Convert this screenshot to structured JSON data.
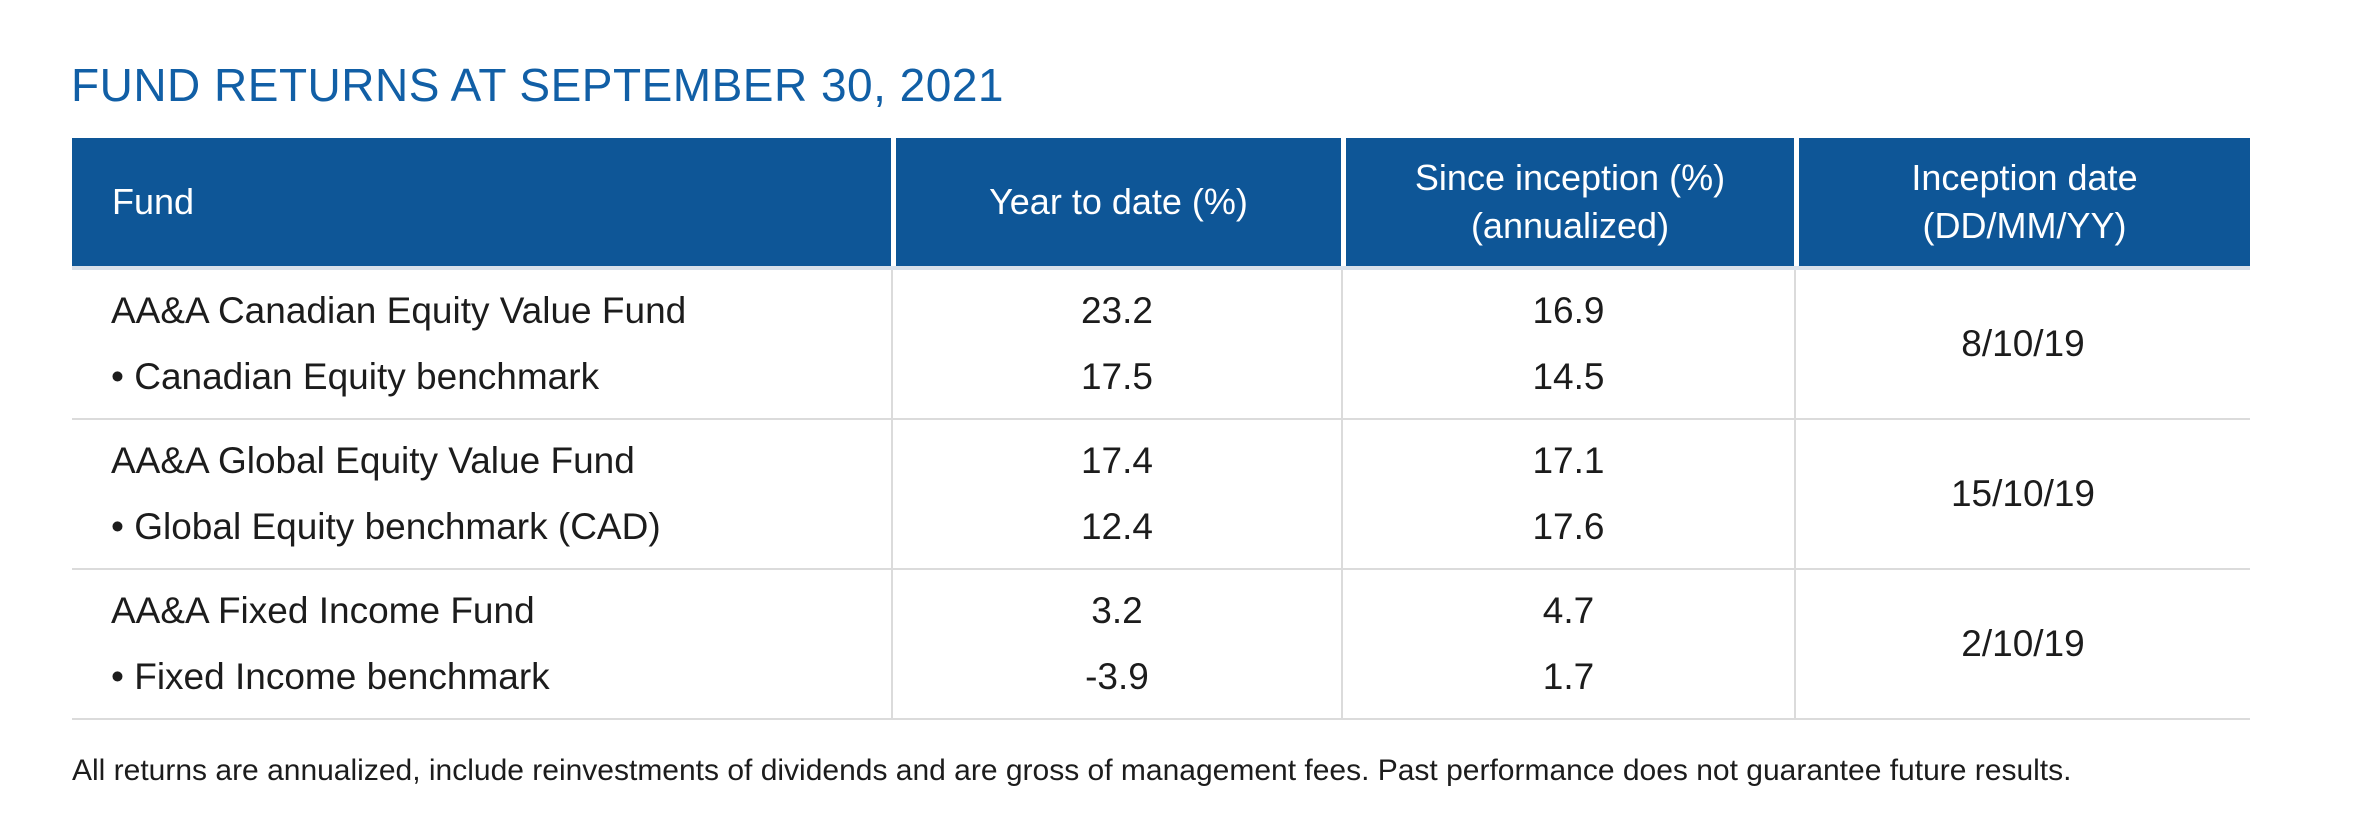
{
  "page": {
    "title": "FUND RETURNS AT SEPTEMBER 30, 2021",
    "footnote": "All returns are annualized, include reinvestments of dividends and are gross of management fees. Past performance does not guarantee future results."
  },
  "colors": {
    "title_blue": "#115FA6",
    "header_blue": "#0E5697",
    "header_text": "#FFFFFF",
    "body_text": "#1C1C1C",
    "divider_gray": "#DBDBDB",
    "header_underline": "#D8E0EA"
  },
  "table": {
    "headers": {
      "fund": "Fund",
      "ytd": "Year to date (%)",
      "since_line1": "Since inception (%)",
      "since_line2": "(annualized)",
      "inception_line1": "Inception date",
      "inception_line2": "(DD/MM/YY)"
    },
    "rows": [
      {
        "fund_name": "AA&A Canadian Equity Value Fund",
        "benchmark_name": "• Canadian Equity benchmark",
        "ytd_fund": "23.2",
        "ytd_benchmark": "17.5",
        "since_fund": "16.9",
        "since_benchmark": "14.5",
        "inception_date": "8/10/19"
      },
      {
        "fund_name": "AA&A Global Equity Value Fund",
        "benchmark_name": "• Global Equity benchmark (CAD)",
        "ytd_fund": "17.4",
        "ytd_benchmark": "12.4",
        "since_fund": "17.1",
        "since_benchmark": "17.6",
        "inception_date": "15/10/19"
      },
      {
        "fund_name": "AA&A Fixed Income Fund",
        "benchmark_name": "• Fixed Income benchmark",
        "ytd_fund": "3.2",
        "ytd_benchmark": "-3.9",
        "since_fund": "4.7",
        "since_benchmark": "1.7",
        "inception_date": "2/10/19"
      }
    ]
  }
}
